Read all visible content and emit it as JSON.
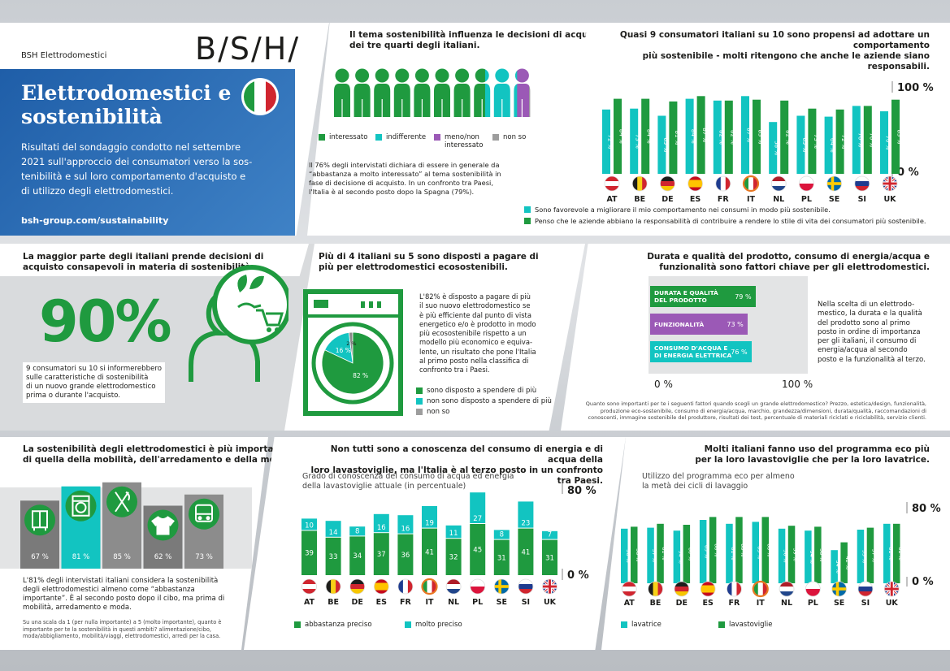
{
  "header": {
    "company": "BSH Elettrodomestici",
    "logo": "B/S/H/",
    "title_line1": "Elettrodomestici e",
    "title_line2": "sostenibilità",
    "intro": [
      "Risultati del sondaggio condotto nel settembre",
      "2021 sull'approccio dei consumatori verso la sos-",
      "tenibilità e sul loro comportamento d'acquisto e",
      "di utilizzo degli elettrodomestici."
    ],
    "url": "bsh-group.com/sustainability"
  },
  "people": {
    "title": [
      "Il tema sostenibilità influenza le decisioni di acquisto",
      "dei tre quarti degli italiani."
    ],
    "legend": {
      "interessato": "interessato",
      "indifferente": "indifferente",
      "meno_l1": "meno/non",
      "meno_l2": "interessato",
      "nonso": "non so"
    },
    "text": [
      "Il 76% degli intervistati dichiara di essere in generale da",
      "“abbastanza a molto interessato” al tema sostenibilità in",
      "fase di decisione di acquisto. In un confronto tra Paesi,",
      "l'Italia è al secondo posto dopo la Spagna (79%)."
    ],
    "chart_data": {
      "type": "pictogram",
      "icons": 10,
      "interessato": 7.6,
      "indifferente": 1.6,
      "meno": 0.6,
      "nonso": 0.2
    }
  },
  "behaviour": {
    "title": [
      "Quasi 9 consumatori italiani su 10 sono propensi ad adottare un comportamento",
      "più sostenibile - molti ritengono che anche le aziende siano responsabili."
    ],
    "top": "100 %",
    "bottom": "0 %",
    "legend1": "Sono favorevole a migliorare il mio comportamento nei consumi in modo più sostenibile.",
    "legend2": "Penso che le aziende abbiano la responsabilità di contribuire a rendere lo stile di vita dei consumatori più sostenibile.",
    "chart_data": {
      "type": "bar",
      "categories": [
        "AT",
        "BE",
        "DE",
        "ES",
        "FR",
        "IT",
        "NL",
        "PL",
        "SE",
        "SI",
        "UK"
      ],
      "ylim": [
        0,
        100
      ],
      "series": [
        {
          "values": [
            72,
            73,
            65,
            84,
            82,
            87,
            58,
            65,
            64,
            76,
            70
          ],
          "labels": [
            "72 %",
            "73 %",
            "65 %",
            "84 %",
            "82 %",
            "87 %",
            "58 %",
            "65 %",
            "64 %",
            "76 %",
            "70 %"
          ]
        },
        {
          "values": [
            84,
            84,
            81,
            87,
            82,
            83,
            82,
            73,
            72,
            76,
            83
          ],
          "labels": [
            "84 %",
            "84 %",
            "81 %",
            "87 %",
            "82 %",
            "83 %",
            "82 %",
            "73 %",
            "72 %",
            "76 %",
            "83 %"
          ]
        }
      ]
    }
  },
  "informed": {
    "title": [
      "La maggior parte degli italiani prende decisioni di",
      "acquisto consapevoli in materia di sostenibilità."
    ],
    "big": "90%",
    "text": [
      "9 consumatori su 10 si informerebbero",
      "sulle caratteristiche di sostenibilità",
      "di un nuovo grande elettrodomestico",
      "prima o durante l'acquisto."
    ]
  },
  "pay": {
    "title": [
      "Più di 4 italiani su 5 sono disposti a pagare di",
      "più per elettrodomestici ecosostenibili."
    ],
    "text": [
      "L'82% è disposto a pagare di più",
      "il suo nuovo elettrodomestico se",
      "è più efficiente dal punto di vista",
      "energetico e/o è prodotto in modo",
      "più ecosostenibile rispetto a un",
      "modello più economico e equiva-",
      "lente, un risultato che pone l'Italia",
      "al primo posto nella classifica di",
      "confronto tra i Paesi."
    ],
    "legend": [
      "sono disposto a spendere di più",
      "non sono disposto a spendere di più",
      "non so"
    ],
    "chart_data": {
      "type": "pie",
      "labels": [
        "sono disposto a spendere di più",
        "non sono disposto a spendere di più",
        "non so"
      ],
      "values": [
        82,
        16,
        2
      ],
      "value_labels": [
        "82 %",
        "16 %",
        "2 %"
      ]
    }
  },
  "factors": {
    "title": [
      "Durata e qualità del prodotto, consumo di energia/acqua e",
      "funzionalità sono fattori chiave per gli elettrodomestici."
    ],
    "bars": [
      {
        "l1": "DURATA E QUALITÀ",
        "l2": "DEL PRODOTTO",
        "value": "79 %"
      },
      {
        "l1": "FUNZIONALITÀ",
        "l2": "",
        "value": "73 %"
      },
      {
        "l1": "CONSUMO D'ACQUA E",
        "l2": "DI ENERGIA ELETTRICA",
        "value": "76 %"
      }
    ],
    "axis0": "0 %",
    "axis100": "100 %",
    "text": [
      "Nella scelta di un elettrodo-",
      "mestico, la durata e la qualità",
      "del prodotto sono al primo",
      "posto in ordine di importanza",
      "per gli italiani, il consumo di",
      "energia/acqua al secondo",
      "posto e la funzionalità al terzo."
    ],
    "note": [
      "Quanto sono importanti per te i seguenti fattori quando scegli un grande elettrodomestico? Prezzo, estetica/design, funzionalità,",
      "produzione eco-sostenibile, consumo di energia/acqua, marchio, grandezza/dimensioni, durata/qualità, raccomandazioni di",
      "conoscenti, immagine sostenibile del produttore, risultati dei test, percentuale di materiali riciclati e riciclabilità, servizio clienti."
    ],
    "chart_data": {
      "type": "bar",
      "categories": [
        "DURATA E QUALITÀ DEL PRODOTTO",
        "FUNZIONALITÀ",
        "CONSUMO D'ACQUA E DI ENERGIA ELETTRICA"
      ],
      "values": [
        79,
        73,
        76
      ],
      "ylim": [
        0,
        100
      ]
    }
  },
  "sectors": {
    "title": [
      "La sostenibilità degli elettrodomestici è più importante",
      "di quella della mobilità, dell'arredamento e della moda."
    ],
    "text": [
      "L'81% degli intervistati italiani considera la sostenibilità",
      "degli elettrodomestici almeno come “abbastanza",
      "importante”. È al secondo posto dopo il cibo, ma prima di",
      "mobilità, arredamento e moda."
    ],
    "note": [
      "Su una scala da 1 (per nulla importante) a 5 (molto importante), quanto è",
      "importante per te la sostenibilità in questi ambiti? alimentazione/cibo,",
      "moda/abbigliamento, mobilità/viaggi, elettrodomestici, arredi per la casa."
    ],
    "chart_data": {
      "type": "bar",
      "categories": [
        "arredamento",
        "elettrodomestici",
        "cibo",
        "moda",
        "mobilità"
      ],
      "icons": [
        "cabinet-icon",
        "washing-machine-icon",
        "fork-knife-icon",
        "tshirt-icon",
        "bus-icon"
      ],
      "values": [
        67,
        81,
        85,
        62,
        73
      ],
      "labels": [
        "67 %",
        "81 %",
        "85 %",
        "62 %",
        "73 %"
      ]
    }
  },
  "knowledge": {
    "title": [
      "Non tutti sono a conoscenza del consumo di energia e di acqua della",
      "loro lavastoviglie, ma l'Italia è al terzo posto in un confronto tra Paesi."
    ],
    "subtitle": [
      "Grado di conoscenza del consumo di acqua ed energia",
      "della lavastoviglie attuale (in percentuale)"
    ],
    "top": "80 %",
    "bottom": "0 %",
    "legend": [
      "abbastanza preciso",
      "molto preciso"
    ],
    "chart_data": {
      "type": "bar",
      "categories": [
        "AT",
        "BE",
        "DE",
        "ES",
        "FR",
        "IT",
        "NL",
        "PL",
        "SE",
        "SI",
        "UK"
      ],
      "ylim": [
        0,
        80
      ],
      "series": [
        {
          "name": "abbastanza preciso",
          "values": [
            39,
            33,
            34,
            37,
            36,
            41,
            32,
            45,
            31,
            41,
            31
          ]
        },
        {
          "name": "molto preciso",
          "values": [
            10,
            14,
            8,
            16,
            16,
            19,
            11,
            27,
            8,
            23,
            7
          ]
        }
      ]
    }
  },
  "eco": {
    "title": [
      "Molti italiani fanno uso del programma eco più",
      "per la loro lavastoviglie che per la loro lavatrice."
    ],
    "subtitle": [
      "Utilizzo del programma eco per almeno",
      "la metà dei cicli di lavaggio"
    ],
    "top": "80 %",
    "bottom": "0 %",
    "legend": [
      "lavatrice",
      "lavastoviglie"
    ],
    "chart_data": {
      "type": "bar",
      "categories": [
        "AT",
        "BE",
        "DE",
        "ES",
        "FR",
        "IT",
        "NL",
        "PL",
        "SE",
        "SI",
        "UK"
      ],
      "ylim": [
        0,
        80
      ],
      "series": [
        {
          "name": "lavatrice",
          "values": [
            56,
            57,
            54,
            65,
            61,
            63,
            56,
            54,
            34,
            55,
            61
          ],
          "labels": [
            "56 %",
            "57 %",
            "54 %",
            "65 %",
            "61 %",
            "63 %",
            "56 %",
            "54 %",
            "34 %",
            "55 %",
            "61 %"
          ]
        },
        {
          "name": "lavastoviglie",
          "values": [
            58,
            61,
            60,
            68,
            68,
            68,
            59,
            58,
            42,
            57,
            61
          ],
          "labels": [
            "58 %",
            "61 %",
            "60 %",
            "68 %",
            "68 %",
            "68 %",
            "59 %",
            "58 %",
            "42 %",
            "57 %",
            "61 %"
          ]
        }
      ]
    }
  },
  "colors": {
    "green": "#1f9a3f",
    "teal": "#12c4c1",
    "purple": "#9b59b6",
    "gray": "#9d9d9d",
    "blue": "#2b6db5",
    "hatch": "#8a8a8a"
  }
}
